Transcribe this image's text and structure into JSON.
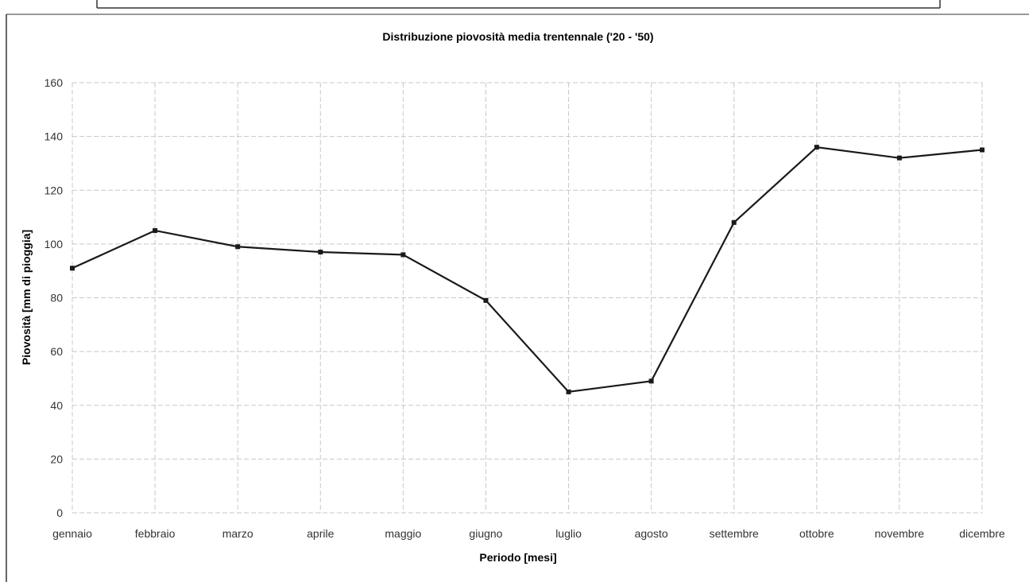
{
  "chart_data": {
    "type": "line",
    "title": "Distribuzione piovosità media trentennale ('20 - '50)",
    "xlabel": "Periodo [mesi]",
    "ylabel": "Piovosità [mm di pioggia]",
    "categories": [
      "gennaio",
      "febbraio",
      "marzo",
      "aprile",
      "maggio",
      "giugno",
      "luglio",
      "agosto",
      "settembre",
      "ottobre",
      "novembre",
      "dicembre"
    ],
    "series": [
      {
        "values": [
          91,
          105,
          99,
          97,
          96,
          79,
          45,
          49,
          108,
          136,
          132,
          135
        ]
      }
    ],
    "ylim": [
      0,
      160
    ],
    "yticks": [
      0,
      20,
      40,
      60,
      80,
      100,
      120,
      140,
      160
    ],
    "grid": true,
    "colors": {
      "line": "#1a1a1a",
      "grid": "#c8c8c8",
      "frame": "#333333"
    }
  }
}
